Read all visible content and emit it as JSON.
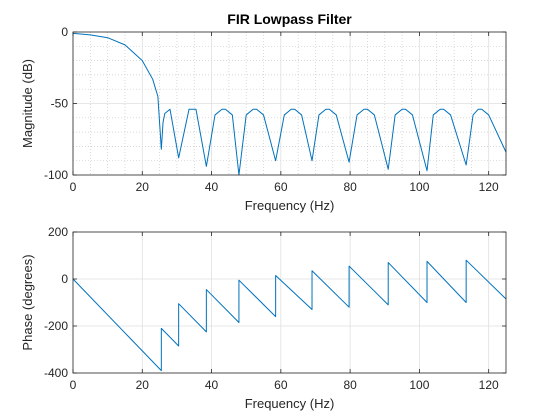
{
  "colors": {
    "line": "#0072BD",
    "axis": "#262626",
    "major_grid": "#DFDFDF",
    "minor_grid": "#CACACA",
    "background": "#FFFFFF"
  },
  "chart_data": [
    {
      "type": "line",
      "title": "FIR Lowpass Filter",
      "xlabel": "Frequency (Hz)",
      "ylabel": "Magnitude (dB)",
      "xlim": [
        0,
        125
      ],
      "ylim": [
        -100,
        0
      ],
      "xticks": [
        0,
        20,
        40,
        60,
        80,
        100,
        120
      ],
      "yticks": [
        0,
        -50,
        -100
      ],
      "xtick_labels": [
        "0",
        "20",
        "40",
        "60",
        "80",
        "100",
        "120"
      ],
      "ytick_labels": [
        "0",
        "-50",
        "-100"
      ],
      "grid": "major and minor",
      "series": [
        {
          "x": [
            0,
            5,
            10,
            15,
            20,
            23,
            24.5,
            25.5,
            26,
            26.5,
            28,
            30.5,
            33.5,
            34.5,
            35.5,
            38.5,
            41,
            43,
            44,
            46,
            47.9,
            50,
            52,
            53,
            55,
            58.5,
            61,
            63,
            64,
            66,
            69,
            71,
            73,
            74,
            76,
            79.7,
            82,
            84,
            85,
            87,
            91,
            93,
            95,
            96,
            98,
            102.2,
            104,
            106,
            107,
            109,
            113.5,
            115.5,
            117,
            118,
            120,
            125
          ],
          "y": [
            -1,
            -2,
            -4,
            -9,
            -20,
            -33,
            -45,
            -82,
            -63,
            -57,
            -54,
            -88,
            -54,
            -54,
            -54,
            -94,
            -58,
            -54,
            -54,
            -58,
            -100,
            -58,
            -54,
            -54,
            -58,
            -90,
            -58,
            -54,
            -54,
            -58,
            -90,
            -58,
            -54,
            -54,
            -58,
            -91,
            -58,
            -54,
            -54,
            -58,
            -96,
            -58,
            -54,
            -54,
            -58,
            -97,
            -58,
            -54,
            -54,
            -58,
            -93,
            -58,
            -54,
            -54,
            -58,
            -84
          ]
        }
      ]
    },
    {
      "type": "line",
      "title": "",
      "xlabel": "Frequency (Hz)",
      "ylabel": "Phase (degrees)",
      "xlim": [
        0,
        125
      ],
      "ylim": [
        -400,
        200
      ],
      "xticks": [
        0,
        20,
        40,
        60,
        80,
        100,
        120
      ],
      "yticks": [
        200,
        0,
        -200,
        -400
      ],
      "xtick_labels": [
        "0",
        "20",
        "40",
        "60",
        "80",
        "100",
        "120"
      ],
      "ytick_labels": [
        "200",
        "0",
        "-200",
        "-400"
      ],
      "grid": "major",
      "series": [
        {
          "x": [
            0,
            25.5,
            25.5,
            30.5,
            30.5,
            38.5,
            38.5,
            47.9,
            47.9,
            58.5,
            58.5,
            69,
            69,
            79.7,
            79.7,
            91,
            91,
            102.2,
            102.2,
            113.5,
            113.5,
            125
          ],
          "y": [
            0,
            -390,
            -210,
            -285,
            -105,
            -225,
            -45,
            -185,
            -5,
            -160,
            15,
            -130,
            35,
            -120,
            55,
            -110,
            70,
            -100,
            75,
            -100,
            80,
            -85
          ]
        }
      ]
    }
  ]
}
